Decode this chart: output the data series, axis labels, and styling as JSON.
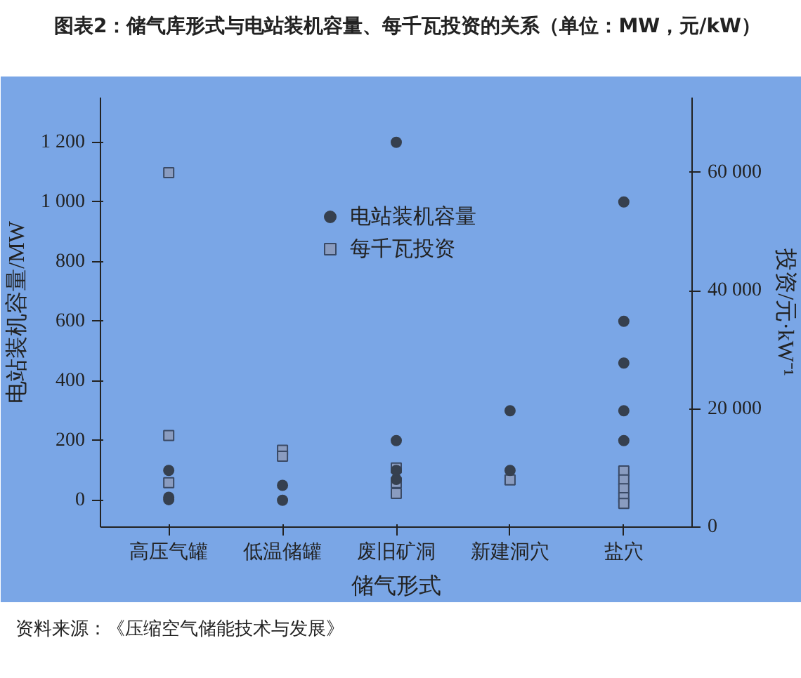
{
  "chart_data": {
    "type": "scatter",
    "title": "图表2：储气库形式与电站装机容量、每千瓦投资的关系（单位：MW，元/kW）",
    "xlabel": "储气形式",
    "ylabel": "电站装机容量/MW",
    "y2label": "投资/元·kW⁻¹",
    "categories": [
      "高压气罐",
      "低温储罐",
      "废旧矿洞",
      "新建洞穴",
      "盐穴"
    ],
    "ylim": [
      -90,
      1350
    ],
    "yticks": [
      0,
      200,
      400,
      600,
      800,
      {
        "value": 1000,
        "label": "1 000"
      },
      {
        "value": 1200,
        "label": "1 200"
      }
    ],
    "y2lim": [
      0,
      72700
    ],
    "y2ticks": [
      0,
      {
        "value": 20000,
        "label": "20 000"
      },
      {
        "value": 40000,
        "label": "40 000"
      },
      {
        "value": 60000,
        "label": "60 000"
      }
    ],
    "grid": false,
    "legend": "top",
    "series": [
      {
        "name": "电站装机容量",
        "color": "#36404f",
        "marker": "circle",
        "x": [
          "高压气罐",
          "高压气罐",
          "高压气罐",
          "低温储罐",
          "低温储罐",
          "废旧矿洞",
          "废旧矿洞",
          "废旧矿洞",
          "废旧矿洞",
          "新建洞穴",
          "新建洞穴",
          "盐穴",
          "盐穴",
          "盐穴",
          "盐穴",
          "盐穴"
        ],
        "values": [
          100,
          10,
          2,
          50,
          0,
          1200,
          200,
          100,
          70,
          300,
          100,
          1000,
          600,
          460,
          300,
          200
        ]
      },
      {
        "name": "每千瓦投资",
        "color": "#8a9cc0",
        "marker": "square",
        "axis": "y2",
        "x": [
          "高压气罐",
          "高压气罐",
          "高压气罐",
          "低温储罐",
          "低温储罐",
          "废旧矿洞",
          "废旧矿洞",
          "废旧矿洞",
          "新建洞穴",
          "盐穴",
          "盐穴",
          "盐穴",
          "盐穴",
          "盐穴"
        ],
        "values": [
          60000,
          15500,
          7500,
          13000,
          12000,
          10000,
          7500,
          5700,
          8000,
          9500,
          8000,
          6500,
          5000,
          4000
        ]
      }
    ],
    "annotations": [
      "资料来源：《压缩空气储能技术与发展》"
    ]
  }
}
